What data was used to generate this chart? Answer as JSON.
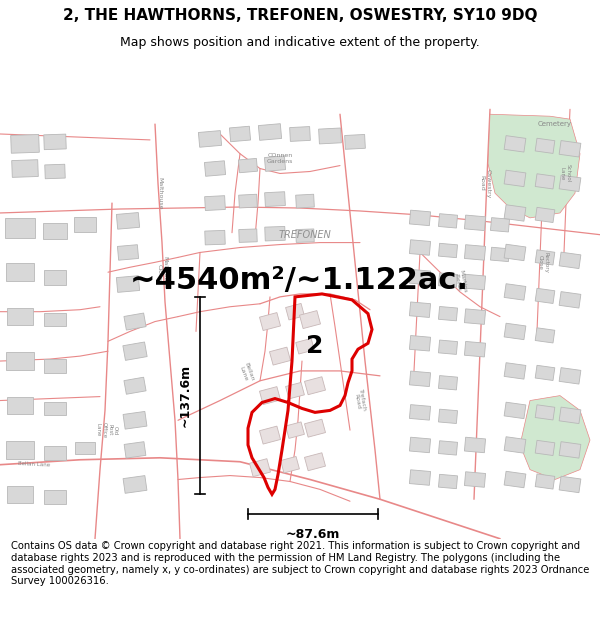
{
  "title": "2, THE HAWTHORNS, TREFONEN, OSWESTRY, SY10 9DQ",
  "subtitle": "Map shows position and indicative extent of the property.",
  "area_label": "~4540m²/~1.122ac.",
  "property_number": "2",
  "dim_horizontal": "~87.6m",
  "dim_vertical": "~137.6m",
  "footer": "Contains OS data © Crown copyright and database right 2021. This information is subject to Crown copyright and database rights 2023 and is reproduced with the permission of HM Land Registry. The polygons (including the associated geometry, namely x, y co-ordinates) are subject to Crown copyright and database rights 2023 Ordnance Survey 100026316.",
  "map_bg": "#f8f4f4",
  "road_color": "#e88888",
  "road_color_light": "#f0b0b0",
  "building_color": "#d8d8d8",
  "building_edge": "#b8b8b8",
  "green_area": "#d0e8d0",
  "highlight_color": "#dd0000",
  "title_fontsize": 11,
  "subtitle_fontsize": 9,
  "area_fontsize": 22,
  "footer_fontsize": 7.2,
  "label_color": "#888888",
  "trefonen_label_color": "#909090"
}
